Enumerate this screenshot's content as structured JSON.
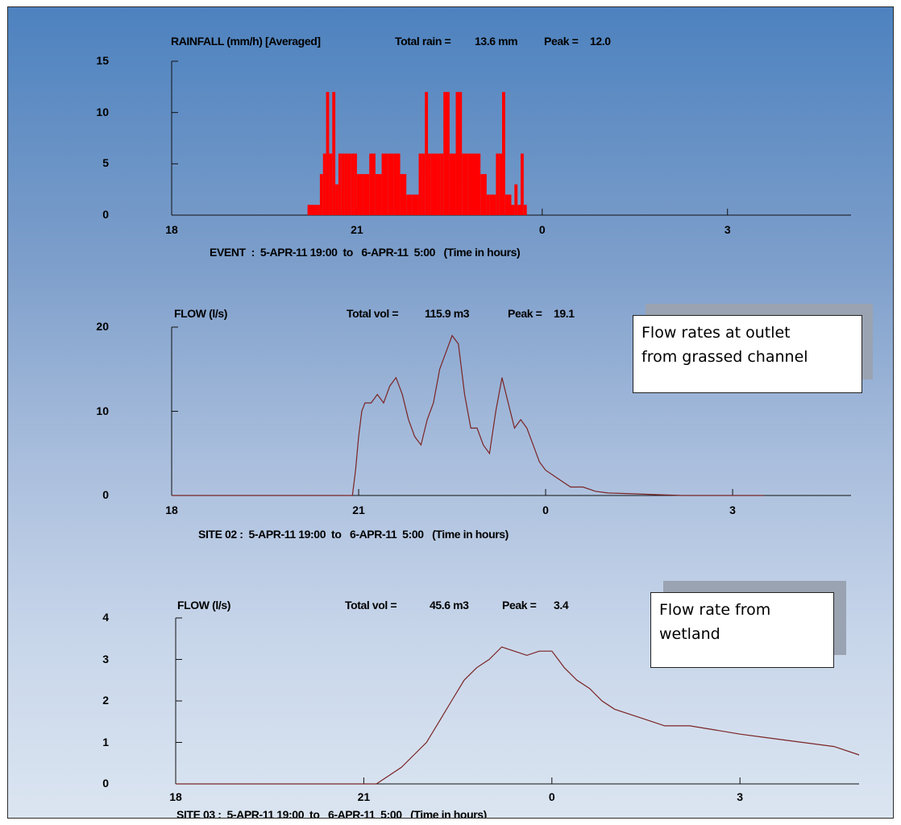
{
  "chart_data": [
    {
      "type": "bar",
      "title": "RAINFALL (mm/h) [Averaged]",
      "summary_label": "Total rain =",
      "summary_value": "13.6 mm",
      "peak_label": "Peak =",
      "peak_value": "12.0",
      "event_text": "EVENT  :  5-APR-11 19:00  to   6-APR-11  5:00   (Time in hours)",
      "xticks": [
        "18",
        "21",
        "0",
        "3"
      ],
      "xtick_hours": [
        18,
        21,
        24,
        27
      ],
      "yticks": [
        "0",
        "5",
        "10",
        "15"
      ],
      "ylim": [
        0,
        15
      ],
      "xlim": [
        18,
        22.5
      ],
      "x_hours": [
        20.2,
        20.35,
        20.4,
        20.45,
        20.5,
        20.55,
        20.6,
        20.65,
        20.7,
        20.75,
        20.8,
        20.85,
        20.9,
        20.95,
        21.0,
        21.1,
        21.2,
        21.3,
        21.4,
        21.5,
        21.6,
        21.7,
        21.8,
        21.9,
        22.0,
        22.05,
        22.1,
        22.15,
        22.2,
        22.3,
        22.35,
        22.4,
        22.5,
        22.6,
        22.7,
        22.8,
        22.9,
        23.0,
        23.1,
        23.15,
        23.2,
        23.25,
        23.3,
        23.35,
        23.4,
        23.5,
        23.55,
        23.6,
        23.65,
        23.7
      ],
      "values": [
        1,
        1,
        4,
        6,
        12,
        6,
        12,
        3,
        6,
        6,
        6,
        6,
        6,
        6,
        4,
        4,
        6,
        4,
        6,
        6,
        6,
        4,
        2,
        2,
        6,
        6,
        12,
        6,
        6,
        6,
        6,
        12,
        6,
        12,
        6,
        6,
        6,
        4,
        2,
        2,
        2,
        6,
        6,
        12,
        2,
        1,
        3,
        1,
        6,
        1
      ],
      "color": "#ff0000"
    },
    {
      "type": "line",
      "title": "FLOW (l/s)",
      "summary_label": "Total vol =",
      "summary_value": "115.9 m3",
      "peak_label": "Peak =",
      "peak_value": "19.1",
      "event_text": "SITE 02 :  5-APR-11 19:00  to   6-APR-11  5:00   (Time in hours)",
      "xticks": [
        "18",
        "21",
        "0",
        "3"
      ],
      "xtick_hours": [
        18,
        21,
        24,
        27
      ],
      "yticks": [
        "0",
        "10",
        "20"
      ],
      "ylim": [
        0,
        20
      ],
      "x": [
        18,
        20.9,
        20.95,
        21.0,
        21.05,
        21.1,
        21.2,
        21.3,
        21.4,
        21.5,
        21.6,
        21.7,
        21.8,
        21.9,
        22.0,
        22.1,
        22.2,
        22.3,
        22.4,
        22.5,
        22.6,
        22.7,
        22.8,
        22.9,
        23.0,
        23.1,
        23.2,
        23.3,
        23.4,
        23.5,
        23.6,
        23.7,
        23.8,
        23.9,
        24.0,
        24.2,
        24.4,
        24.6,
        24.8,
        25.0,
        25.4,
        25.8,
        26.2,
        26.6,
        27.0,
        27.5
      ],
      "values": [
        0,
        0,
        3,
        7,
        10,
        11,
        11,
        12,
        11,
        13,
        14,
        12,
        9,
        7,
        6,
        9,
        11,
        15,
        17,
        19,
        18,
        12,
        8,
        8,
        6,
        5,
        10,
        14,
        11,
        8,
        9,
        8,
        6,
        4,
        3,
        2,
        1,
        1,
        0.5,
        0.3,
        0.2,
        0.1,
        0,
        0,
        0,
        0
      ],
      "color": "#7a2424"
    },
    {
      "type": "line",
      "title": "FLOW (l/s)",
      "summary_label": "Total vol =",
      "summary_value": "45.6 m3",
      "peak_label": "Peak =",
      "peak_value": "3.4",
      "event_text": "SITE 03 :  5-APR-11 19:00  to   6-APR-11  5:00   (Time in hours)",
      "xticks": [
        "18",
        "21",
        "0",
        "3"
      ],
      "xtick_hours": [
        18,
        21,
        24,
        27
      ],
      "yticks": [
        "0",
        "1",
        "2",
        "3",
        "4"
      ],
      "ylim": [
        0,
        4
      ],
      "x": [
        18,
        21.2,
        21.4,
        21.6,
        21.8,
        22.0,
        22.2,
        22.4,
        22.6,
        22.8,
        23.0,
        23.2,
        23.4,
        23.6,
        23.8,
        24.0,
        24.1,
        24.2,
        24.4,
        24.6,
        24.8,
        25.0,
        25.4,
        25.8,
        26.2,
        26.6,
        27.0,
        27.5,
        28.0,
        28.5,
        28.9
      ],
      "values": [
        0,
        0,
        0.2,
        0.4,
        0.7,
        1.0,
        1.5,
        2.0,
        2.5,
        2.8,
        3.0,
        3.3,
        3.2,
        3.1,
        3.2,
        3.2,
        3.0,
        2.8,
        2.5,
        2.3,
        2.0,
        1.8,
        1.6,
        1.4,
        1.4,
        1.3,
        1.2,
        1.1,
        1.0,
        0.9,
        0.7
      ],
      "color": "#7a2424"
    }
  ],
  "notes": [
    {
      "lines": [
        "Flow rates at outlet",
        "from grassed channel"
      ]
    },
    {
      "lines": [
        "Flow rate from",
        "wetland"
      ]
    }
  ]
}
